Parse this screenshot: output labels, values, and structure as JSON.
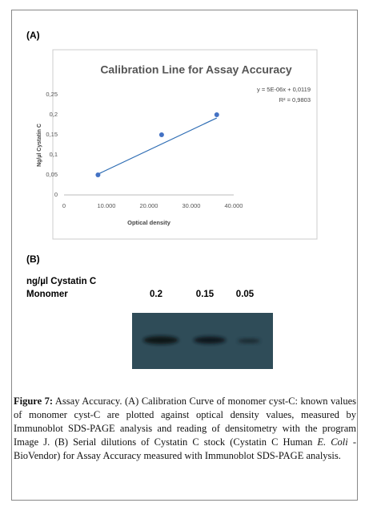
{
  "panel_a_label": "(A)",
  "chart_data": {
    "type": "scatter",
    "title": "Calibration Line for Assay Accuracy",
    "x_label": "Optical density",
    "y_label": "Ng/µl Cystatin C",
    "x": [
      8000,
      23000,
      36000
    ],
    "values": [
      0.05,
      0.15,
      0.2
    ],
    "color": "#4472c4",
    "xlim": [
      0,
      40000
    ],
    "xticks": [
      0,
      {
        "value": 10000,
        "label": "10.000"
      },
      {
        "value": 20000,
        "label": "20.000"
      },
      {
        "value": 30000,
        "label": "30.000"
      },
      {
        "value": 40000,
        "label": "40.000"
      }
    ],
    "ylim": [
      0,
      0.25
    ],
    "yticks": [
      0,
      {
        "value": 0.05,
        "label": "0,05"
      },
      {
        "value": 0.1,
        "label": "0,1"
      },
      {
        "value": 0.15,
        "label": "0,15"
      },
      {
        "value": 0.2,
        "label": "0,2"
      },
      {
        "value": 0.25,
        "label": "0,25"
      }
    ],
    "grid": false,
    "trendline": {
      "slope": 5e-06,
      "intercept": 0.0119,
      "equation": "y = 5E-06x + 0,0119",
      "r2": "R² = 0,9803"
    }
  },
  "panel_b_label": "(B)",
  "blot": {
    "unit_label": "ng/µl  Cystatin C",
    "row_label": "Monomer",
    "lanes": [
      "0.2",
      "0.15",
      "0.05"
    ]
  },
  "caption": {
    "label": "Figure 7:",
    "text_1": " Assay Accuracy. (A) Calibration Curve of monomer cyst-C: known values of monomer cyst-C are plotted against optical density values, measured by Immunoblot SDS-PAGE analysis and reading of densitometry with the program Image J. (B) Serial dilutions of Cystatin C stock (Cystatin C Human ",
    "italic": "E. Coli",
    "text_2": " - BioVendor) for Assay Accuracy measured with Immunoblot SDS-PAGE analysis."
  }
}
